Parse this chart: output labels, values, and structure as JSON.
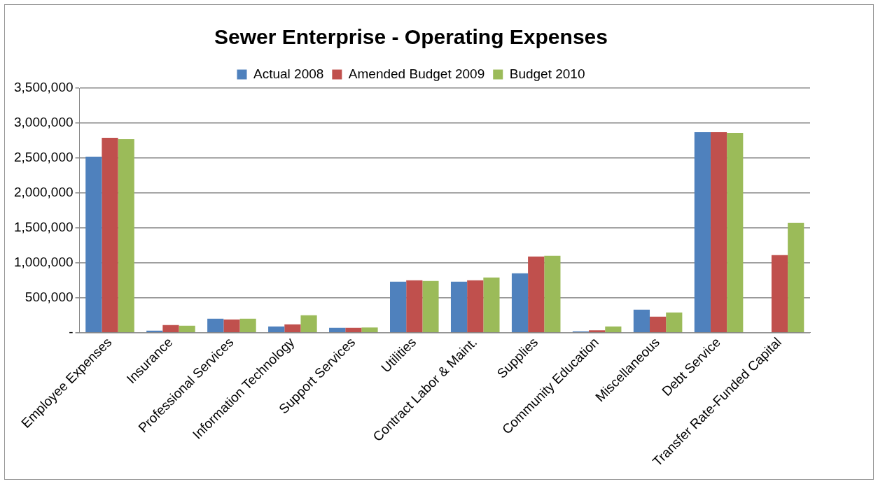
{
  "chart_data": {
    "type": "bar",
    "title": "Sewer Enterprise - Operating Expenses",
    "categories": [
      "Employee Expenses",
      "Insurance",
      "Professional Services",
      "Information Technology",
      "Support Services",
      "Utilities",
      "Contract Labor & Maint.",
      "Supplies",
      "Community Education",
      "Miscellaneous",
      "Debt Service",
      "Transfer Rate-Funded Capital"
    ],
    "series": [
      {
        "name": "Actual 2008",
        "color": "#4f81bd",
        "values": [
          2520000,
          30000,
          200000,
          90000,
          70000,
          730000,
          730000,
          850000,
          20000,
          330000,
          2870000,
          null
        ]
      },
      {
        "name": "Amended Budget 2009",
        "color": "#c0504d",
        "values": [
          2790000,
          110000,
          190000,
          120000,
          70000,
          750000,
          750000,
          1090000,
          35000,
          230000,
          2870000,
          1110000
        ]
      },
      {
        "name": "Budget 2010",
        "color": "#9bbb59",
        "values": [
          2770000,
          100000,
          200000,
          250000,
          75000,
          740000,
          790000,
          1100000,
          90000,
          290000,
          2860000,
          1570000
        ]
      }
    ],
    "ylim": [
      0,
      3500000
    ],
    "yticks": [
      {
        "value": 0,
        "label": "-"
      },
      {
        "value": 500000,
        "label": "500,000"
      },
      {
        "value": 1000000,
        "label": "1,000,000"
      },
      {
        "value": 1500000,
        "label": "1,500,000"
      },
      {
        "value": 2000000,
        "label": "2,000,000"
      },
      {
        "value": 2500000,
        "label": "2,500,000"
      },
      {
        "value": 3000000,
        "label": "3,000,000"
      },
      {
        "value": 3500000,
        "label": "3,500,000"
      }
    ],
    "grid": "y",
    "legend": "top"
  }
}
